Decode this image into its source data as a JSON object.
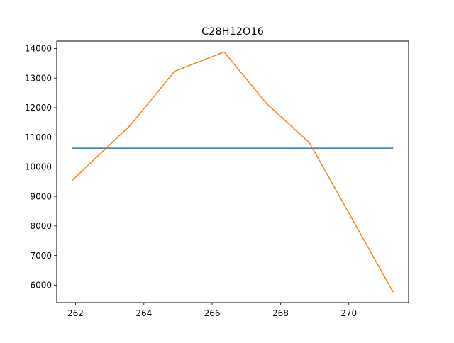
{
  "chart_data": {
    "type": "line",
    "title": "C28H12O16",
    "xlabel": "",
    "ylabel": "",
    "xlim": [
      261.45,
      271.75
    ],
    "ylim": [
      5410,
      14250
    ],
    "x_ticks": [
      262,
      264,
      266,
      268,
      270
    ],
    "y_ticks": [
      6000,
      7000,
      8000,
      9000,
      10000,
      11000,
      12000,
      13000,
      14000
    ],
    "grid": false,
    "legend": "none",
    "series": [
      {
        "color": "#1f77b4",
        "x": [
          261.9,
          271.3
        ],
        "y": [
          10630,
          10630
        ]
      },
      {
        "color": "#ff7f0e",
        "x": [
          261.9,
          263.6,
          264.9,
          266.35,
          267.6,
          268.85,
          271.3
        ],
        "y": [
          9540,
          11400,
          13230,
          13880,
          12130,
          10810,
          5760
        ]
      }
    ]
  }
}
